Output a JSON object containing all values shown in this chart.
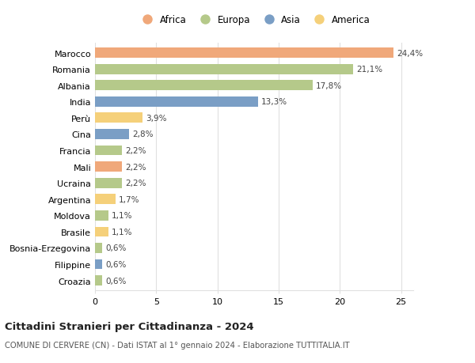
{
  "categories": [
    "Marocco",
    "Romania",
    "Albania",
    "India",
    "Perù",
    "Cina",
    "Francia",
    "Mali",
    "Ucraina",
    "Argentina",
    "Moldova",
    "Brasile",
    "Bosnia-Erzegovina",
    "Filippine",
    "Croazia"
  ],
  "values": [
    24.4,
    21.1,
    17.8,
    13.3,
    3.9,
    2.8,
    2.2,
    2.2,
    2.2,
    1.7,
    1.1,
    1.1,
    0.6,
    0.6,
    0.6
  ],
  "continents": [
    "Africa",
    "Europa",
    "Europa",
    "Asia",
    "America",
    "Asia",
    "Europa",
    "Africa",
    "Europa",
    "America",
    "Europa",
    "America",
    "Europa",
    "Asia",
    "Europa"
  ],
  "colors": {
    "Africa": "#F0A87A",
    "Europa": "#B5C98A",
    "Asia": "#7A9EC5",
    "America": "#F5D07A"
  },
  "legend_order": [
    "Africa",
    "Europa",
    "Asia",
    "America"
  ],
  "title1": "Cittadini Stranieri per Cittadinanza - 2024",
  "title2": "COMUNE DI CERVERE (CN) - Dati ISTAT al 1° gennaio 2024 - Elaborazione TUTTITALIA.IT",
  "xlim": [
    0,
    26
  ],
  "xticks": [
    0,
    5,
    10,
    15,
    20,
    25
  ],
  "bg_color": "#ffffff",
  "grid_color": "#e0e0e0"
}
